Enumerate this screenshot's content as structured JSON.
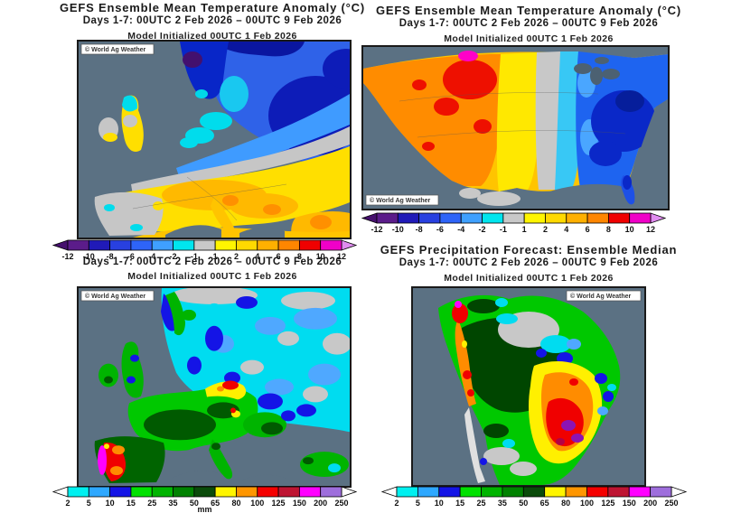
{
  "watermark": "© World Ag Weather",
  "titles": {
    "temp_anomaly": "GEFS Ensemble Mean Temperature Anomaly (°C)",
    "precip_median": "GEFS Precipitation Forecast: Ensemble Median"
  },
  "period": "Days 1-7: 00UTC 2 Feb 2026 – 00UTC 9 Feb 2026",
  "init": "Model Initialized 00UTC 1 Feb 2026",
  "colorbars": {
    "temp_anomaly": {
      "description": "temperature anomaly scale in degrees C",
      "labels": [
        "-12",
        "-10",
        "-8",
        "-6",
        "-4",
        "-2",
        "-1",
        "1",
        "2",
        "4",
        "6",
        "8",
        "10",
        "12"
      ],
      "colors": [
        "#5b1c8a",
        "#201ab8",
        "#2840e0",
        "#2e64f8",
        "#3fa0ff",
        "#00e5ee",
        "#c8c8c8",
        "#fff500",
        "#ffd900",
        "#ffb000",
        "#ff8600",
        "#f00000",
        "#f000c8"
      ],
      "arrow_left": "#46106e",
      "arrow_right": "#e08cf0"
    },
    "precip_mm": {
      "description": "precipitation scale in millimetres",
      "labels": [
        "2",
        "5",
        "10",
        "15",
        "25",
        "35",
        "50",
        "65",
        "80",
        "100",
        "125",
        "150",
        "200",
        "250"
      ],
      "colors": [
        "#00f0f0",
        "#2ea8ff",
        "#1414e6",
        "#00e100",
        "#00b400",
        "#008200",
        "#0a4b0a",
        "#fff500",
        "#ff9600",
        "#f50000",
        "#be1432",
        "#ff00ff",
        "#9e6edc"
      ],
      "arrow_left": "#ffffff",
      "arrow_right": "#ffffff",
      "unit": "mm"
    }
  }
}
